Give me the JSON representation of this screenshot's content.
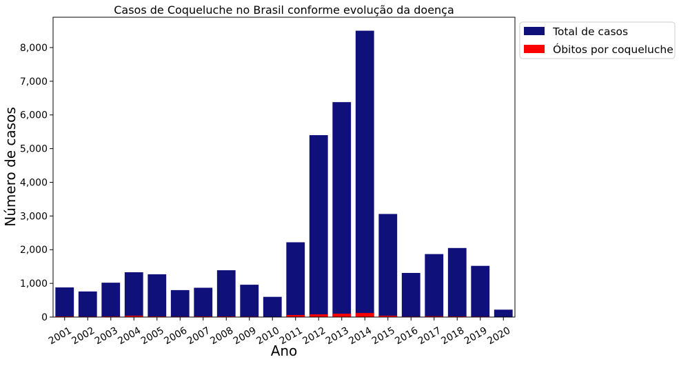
{
  "chart_data": {
    "type": "bar",
    "title": "Casos de Coqueluche no Brasil conforme evolução da doença",
    "xlabel": "Ano",
    "ylabel": "Número de casos",
    "ylim": [
      0,
      8900
    ],
    "yticks": [
      0,
      1000,
      2000,
      3000,
      4000,
      5000,
      6000,
      7000,
      8000
    ],
    "ytick_labels": [
      "0",
      "1,000",
      "2,000",
      "3,000",
      "4,000",
      "5,000",
      "6,000",
      "7,000",
      "8,000"
    ],
    "categories": [
      "2001",
      "2002",
      "2003",
      "2004",
      "2005",
      "2006",
      "2007",
      "2008",
      "2009",
      "2010",
      "2011",
      "2012",
      "2013",
      "2014",
      "2015",
      "2016",
      "2017",
      "2018",
      "2019",
      "2020"
    ],
    "series": [
      {
        "name": "Total de casos",
        "color": "#10107a",
        "values": [
          880,
          760,
          1020,
          1330,
          1270,
          800,
          870,
          1390,
          960,
          600,
          2220,
          5400,
          6380,
          8500,
          3060,
          1310,
          1870,
          2050,
          1520,
          220
        ]
      },
      {
        "name": "Óbitos por coqueluche",
        "color": "#ff0000",
        "values": [
          20,
          15,
          20,
          40,
          20,
          15,
          20,
          20,
          15,
          10,
          60,
          80,
          100,
          120,
          40,
          15,
          25,
          20,
          15,
          5
        ]
      }
    ],
    "legend_position": "outside-top-right",
    "grid": false
  }
}
